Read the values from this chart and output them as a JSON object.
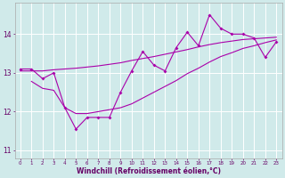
{
  "xlabel": "Windchill (Refroidissement éolien,°C)",
  "xlim": [
    -0.5,
    23.5
  ],
  "ylim": [
    10.8,
    14.8
  ],
  "yticks": [
    11,
    12,
    13,
    14
  ],
  "xticks": [
    0,
    1,
    2,
    3,
    4,
    5,
    6,
    7,
    8,
    9,
    10,
    11,
    12,
    13,
    14,
    15,
    16,
    17,
    18,
    19,
    20,
    21,
    22,
    23
  ],
  "background_color": "#d0eaea",
  "line_color": "#aa00aa",
  "grid_color": "#b8d8d8",
  "line1_x": [
    0,
    1,
    2,
    3,
    4,
    5,
    6,
    7,
    8,
    9,
    10,
    11,
    12,
    13,
    14,
    15,
    16,
    17,
    18,
    19,
    20,
    21,
    22,
    23
  ],
  "line1_y": [
    13.1,
    13.1,
    12.85,
    13.0,
    12.1,
    11.55,
    11.85,
    11.85,
    11.85,
    12.5,
    13.05,
    13.55,
    13.2,
    13.05,
    13.65,
    14.05,
    13.7,
    14.5,
    14.15,
    14.0,
    14.0,
    13.9,
    13.4,
    13.8
  ],
  "line2_x": [
    0,
    1,
    2,
    3,
    4,
    5,
    6,
    7,
    8,
    9,
    10,
    11,
    12,
    13,
    14,
    15,
    16,
    17,
    18,
    19,
    20,
    21,
    22,
    23
  ],
  "line2_y": [
    13.05,
    13.05,
    13.05,
    13.08,
    13.1,
    13.12,
    13.15,
    13.18,
    13.22,
    13.26,
    13.32,
    13.37,
    13.42,
    13.48,
    13.54,
    13.6,
    13.67,
    13.73,
    13.78,
    13.82,
    13.86,
    13.88,
    13.9,
    13.92
  ],
  "line3_x": [
    1,
    2,
    3,
    4,
    5,
    6,
    7,
    8,
    9,
    10,
    11,
    12,
    13,
    14,
    15,
    16,
    17,
    18,
    19,
    20,
    21,
    22,
    23
  ],
  "line3_y": [
    12.78,
    12.6,
    12.55,
    12.1,
    11.95,
    11.95,
    12.0,
    12.05,
    12.1,
    12.2,
    12.35,
    12.5,
    12.65,
    12.8,
    12.98,
    13.12,
    13.28,
    13.42,
    13.52,
    13.63,
    13.7,
    13.78,
    13.85
  ]
}
